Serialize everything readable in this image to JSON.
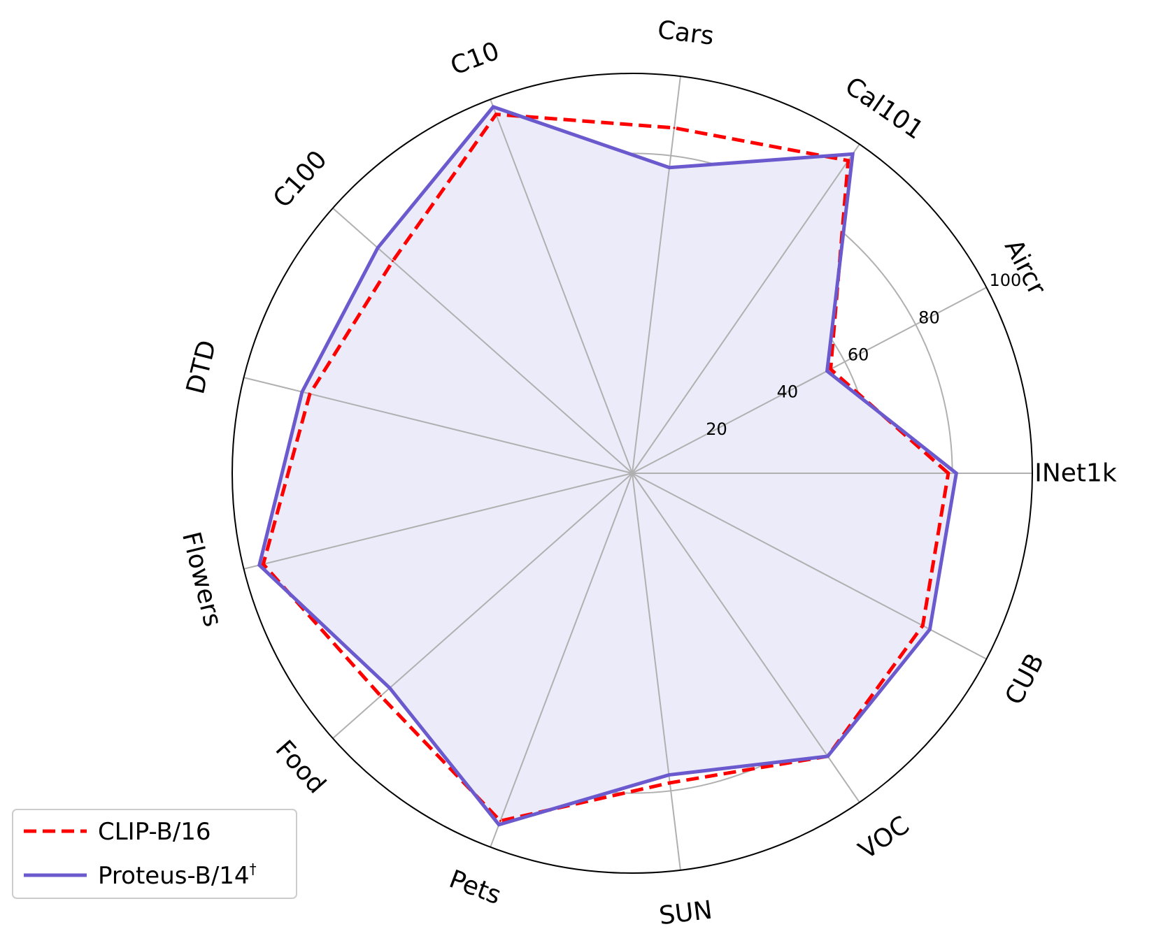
{
  "chart_data": {
    "type": "radar",
    "categories": [
      "INet1k",
      "Aircr",
      "Cal101",
      "Cars",
      "C10",
      "C100",
      "DTD",
      "Flowers",
      "Food",
      "Pets",
      "SUN",
      "VOC",
      "CUB"
    ],
    "radial_ticks": [
      "20",
      "40",
      "60",
      "80",
      "100"
    ],
    "rlim": [
      0,
      100
    ],
    "series": [
      {
        "name": "CLIP-B/16",
        "values": [
          79,
          56,
          95,
          87,
          96,
          80,
          83,
          95,
          84,
          93,
          78,
          86,
          82
        ],
        "color": "#ff0000",
        "style": "dashed"
      },
      {
        "name": "Proteus-B/14",
        "name_sup": "†",
        "values": [
          81,
          55,
          97,
          77,
          98,
          85,
          85,
          96,
          81,
          94,
          76,
          86,
          84
        ],
        "color": "#6a5acd",
        "style": "solid",
        "fill": "#ecebf9"
      }
    ],
    "grid": true,
    "legend": "lower-left"
  }
}
